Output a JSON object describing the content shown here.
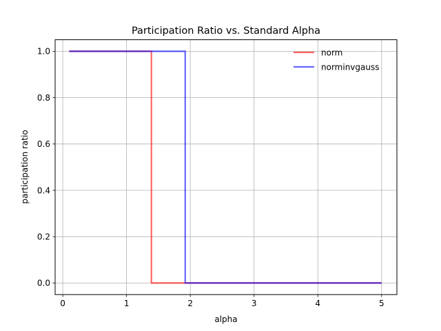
{
  "chart_data": {
    "type": "line",
    "title": "Participation Ratio vs. Standard Alpha",
    "xlabel": "alpha",
    "ylabel": "participation ratio",
    "xlim": [
      -0.12,
      5.24
    ],
    "ylim": [
      -0.05,
      1.05
    ],
    "xticks": [
      0,
      1,
      2,
      3,
      4,
      5
    ],
    "yticks": [
      0.0,
      0.2,
      0.4,
      0.6,
      0.8,
      1.0
    ],
    "xtick_labels": [
      "0",
      "1",
      "2",
      "3",
      "4",
      "5"
    ],
    "ytick_labels": [
      "0.0",
      "0.2",
      "0.4",
      "0.6",
      "0.8",
      "1.0"
    ],
    "grid": true,
    "legend_position": "top-right",
    "series": [
      {
        "name": "norm",
        "color": "#ff0000",
        "x": [
          0.1,
          1.39,
          1.39,
          5.0
        ],
        "y": [
          1.0,
          1.0,
          0.0,
          0.0
        ]
      },
      {
        "name": "norminvgauss",
        "color": "#0000ff",
        "x": [
          0.1,
          1.92,
          1.92,
          5.0
        ],
        "y": [
          1.0,
          1.0,
          0.0,
          0.0
        ]
      }
    ]
  }
}
